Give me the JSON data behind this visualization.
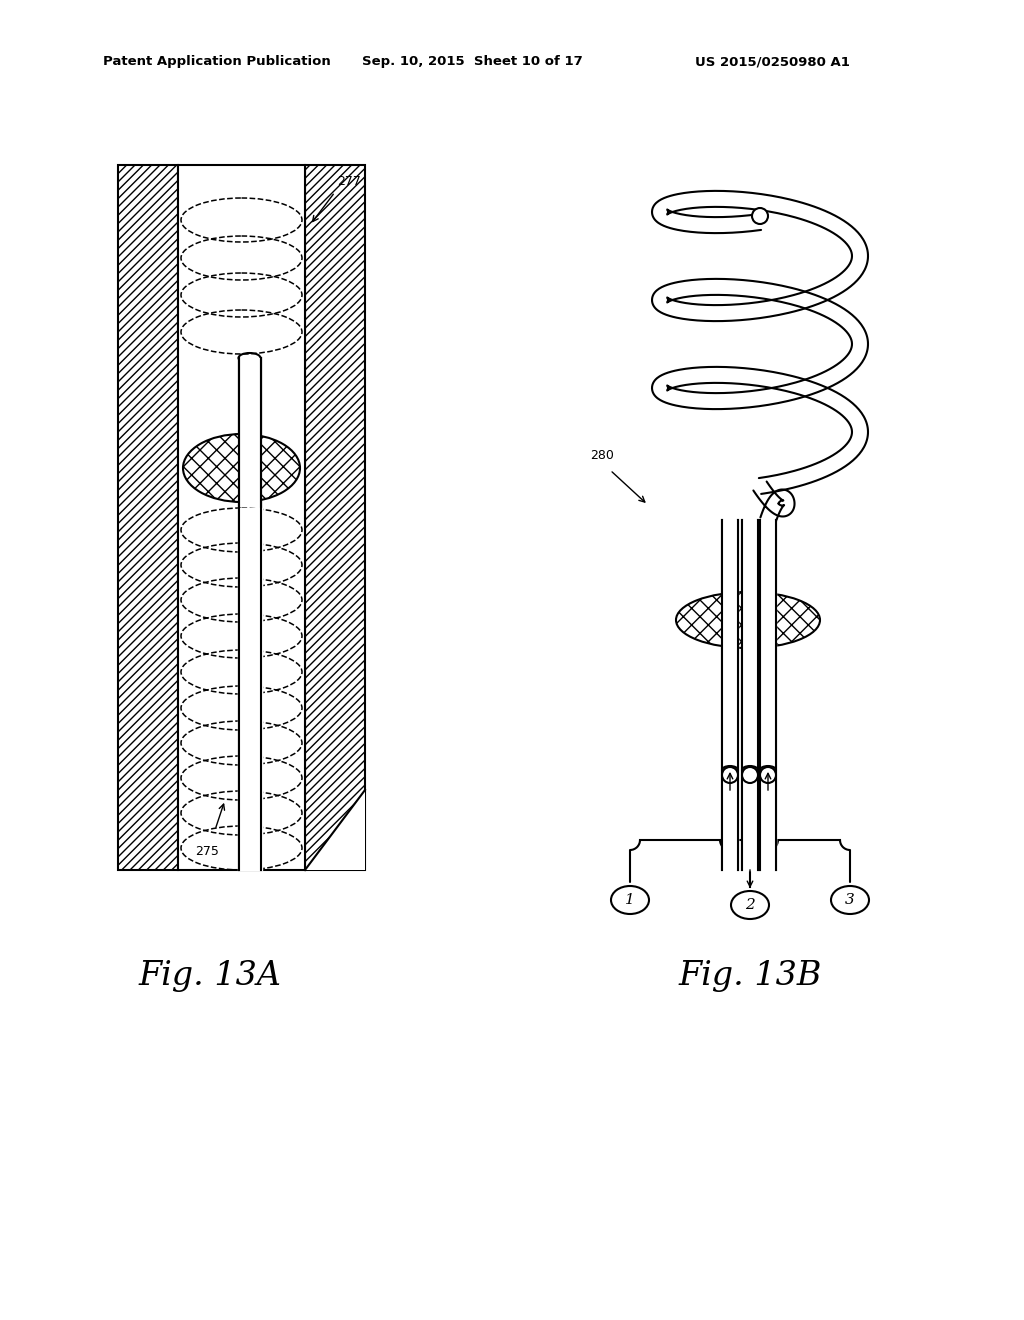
{
  "title_left": "Patent Application Publication",
  "title_mid": "Sep. 10, 2015  Sheet 10 of 17",
  "title_right": "US 2015/0250980 A1",
  "fig13a_label": "Fig. 13A",
  "fig13b_label": "Fig. 13B",
  "label_277": "277",
  "label_275": "275",
  "label_280": "280",
  "bg_color": "#ffffff",
  "line_color": "#000000"
}
